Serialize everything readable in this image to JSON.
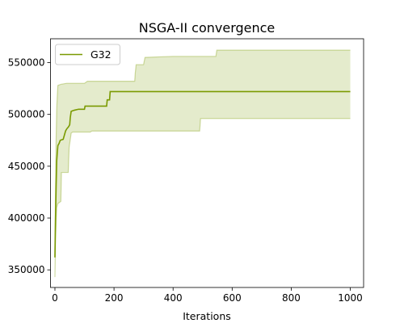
{
  "chart_data": {
    "type": "line",
    "title": "NSGA-II convergence",
    "xlabel": "Iterations",
    "ylabel": "",
    "xlim": [
      -15,
      1045
    ],
    "ylim": [
      333000,
      573000
    ],
    "xticks": [
      0,
      200,
      400,
      600,
      800,
      1000
    ],
    "yticks": [
      350000,
      400000,
      450000,
      500000,
      550000
    ],
    "grid": false,
    "legend_position": "top-left",
    "series": [
      {
        "name": "G32",
        "color": "#7a9a01",
        "band_color": "#7a9a01",
        "line_points": [
          [
            0,
            362000
          ],
          [
            2,
            400000
          ],
          [
            4,
            430000
          ],
          [
            6,
            455000
          ],
          [
            8,
            463000
          ],
          [
            10,
            470000
          ],
          [
            14,
            472000
          ],
          [
            18,
            475000
          ],
          [
            28,
            476000
          ],
          [
            32,
            480000
          ],
          [
            36,
            484000
          ],
          [
            40,
            486000
          ],
          [
            46,
            488000
          ],
          [
            50,
            490000
          ],
          [
            52,
            497000
          ],
          [
            55,
            503000
          ],
          [
            65,
            504000
          ],
          [
            80,
            505000
          ],
          [
            100,
            505000
          ],
          [
            102,
            508000
          ],
          [
            150,
            508000
          ],
          [
            175,
            508000
          ],
          [
            177,
            514000
          ],
          [
            185,
            514000
          ],
          [
            187,
            522000
          ],
          [
            600,
            522000
          ],
          [
            1000,
            522000
          ]
        ],
        "band_upper": [
          [
            0,
            362000
          ],
          [
            2,
            430000
          ],
          [
            4,
            475000
          ],
          [
            6,
            505000
          ],
          [
            8,
            518000
          ],
          [
            10,
            528000
          ],
          [
            20,
            529000
          ],
          [
            40,
            530000
          ],
          [
            100,
            530000
          ],
          [
            110,
            532000
          ],
          [
            270,
            532000
          ],
          [
            272,
            540000
          ],
          [
            275,
            548000
          ],
          [
            300,
            548000
          ],
          [
            305,
            555000
          ],
          [
            400,
            556000
          ],
          [
            545,
            556000
          ],
          [
            548,
            562000
          ],
          [
            1000,
            562000
          ]
        ],
        "band_lower": [
          [
            0,
            343000
          ],
          [
            2,
            380000
          ],
          [
            4,
            395000
          ],
          [
            6,
            410000
          ],
          [
            10,
            414000
          ],
          [
            20,
            416000
          ],
          [
            22,
            444000
          ],
          [
            45,
            444000
          ],
          [
            48,
            468000
          ],
          [
            55,
            482000
          ],
          [
            60,
            483000
          ],
          [
            120,
            483000
          ],
          [
            125,
            484000
          ],
          [
            490,
            484000
          ],
          [
            493,
            496000
          ],
          [
            1000,
            496000
          ]
        ]
      }
    ]
  }
}
